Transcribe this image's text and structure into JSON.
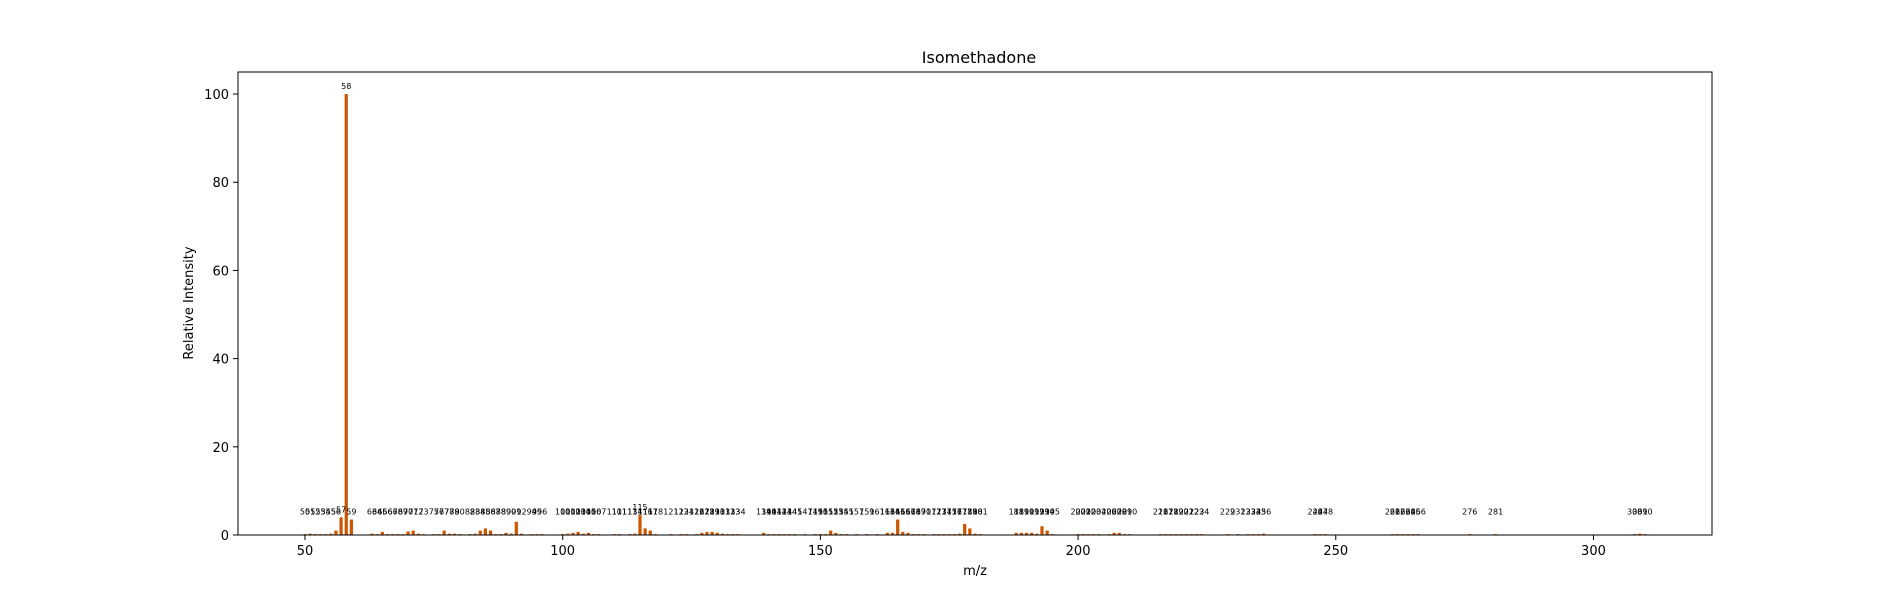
{
  "chart_data": {
    "type": "bar",
    "title": "Isomethadone",
    "xlabel": "m/z",
    "ylabel": "Relative Intensity",
    "xlim": [
      37,
      323
    ],
    "ylim": [
      0,
      105
    ],
    "xticks": [
      50,
      100,
      150,
      200,
      250,
      300
    ],
    "yticks": [
      0,
      20,
      40,
      60,
      80,
      100
    ],
    "grid": false,
    "bar_color": "#cc5500",
    "peaks": [
      {
        "mz": 50,
        "intensity": 0.2
      },
      {
        "mz": 51,
        "intensity": 0.3
      },
      {
        "mz": 52,
        "intensity": 0.2
      },
      {
        "mz": 53,
        "intensity": 0.2
      },
      {
        "mz": 54,
        "intensity": 0.2
      },
      {
        "mz": 55,
        "intensity": 0.3
      },
      {
        "mz": 56,
        "intensity": 1.0
      },
      {
        "mz": 57,
        "intensity": 4.0
      },
      {
        "mz": 58,
        "intensity": 100
      },
      {
        "mz": 59,
        "intensity": 3.5
      },
      {
        "mz": 63,
        "intensity": 0.3
      },
      {
        "mz": 64,
        "intensity": 0.2
      },
      {
        "mz": 65,
        "intensity": 0.7
      },
      {
        "mz": 66,
        "intensity": 0.2
      },
      {
        "mz": 67,
        "intensity": 0.2
      },
      {
        "mz": 68,
        "intensity": 0.2
      },
      {
        "mz": 69,
        "intensity": 0.2
      },
      {
        "mz": 70,
        "intensity": 0.8
      },
      {
        "mz": 71,
        "intensity": 1.0
      },
      {
        "mz": 72,
        "intensity": 0.3
      },
      {
        "mz": 73,
        "intensity": 0.2
      },
      {
        "mz": 75,
        "intensity": 0.2
      },
      {
        "mz": 76,
        "intensity": 0.2
      },
      {
        "mz": 77,
        "intensity": 1.0
      },
      {
        "mz": 78,
        "intensity": 0.3
      },
      {
        "mz": 79,
        "intensity": 0.3
      },
      {
        "mz": 80,
        "intensity": 0.2
      },
      {
        "mz": 82,
        "intensity": 0.2
      },
      {
        "mz": 83,
        "intensity": 0.3
      },
      {
        "mz": 84,
        "intensity": 1.0
      },
      {
        "mz": 85,
        "intensity": 1.5
      },
      {
        "mz": 86,
        "intensity": 1.0
      },
      {
        "mz": 87,
        "intensity": 0.2
      },
      {
        "mz": 88,
        "intensity": 0.2
      },
      {
        "mz": 89,
        "intensity": 0.5
      },
      {
        "mz": 90,
        "intensity": 0.3
      },
      {
        "mz": 91,
        "intensity": 3.0
      },
      {
        "mz": 92,
        "intensity": 0.3
      },
      {
        "mz": 94,
        "intensity": 0.2
      },
      {
        "mz": 95,
        "intensity": 0.2
      },
      {
        "mz": 96,
        "intensity": 0.2
      },
      {
        "mz": 100,
        "intensity": 0.2
      },
      {
        "mz": 101,
        "intensity": 0.3
      },
      {
        "mz": 102,
        "intensity": 0.5
      },
      {
        "mz": 103,
        "intensity": 0.7
      },
      {
        "mz": 104,
        "intensity": 0.3
      },
      {
        "mz": 105,
        "intensity": 0.5
      },
      {
        "mz": 106,
        "intensity": 0.2
      },
      {
        "mz": 107,
        "intensity": 0.2
      },
      {
        "mz": 110,
        "intensity": 0.2
      },
      {
        "mz": 111,
        "intensity": 0.2
      },
      {
        "mz": 113,
        "intensity": 0.2
      },
      {
        "mz": 114,
        "intensity": 0.3
      },
      {
        "mz": 115,
        "intensity": 4.5
      },
      {
        "mz": 116,
        "intensity": 1.5
      },
      {
        "mz": 117,
        "intensity": 1.0
      },
      {
        "mz": 118,
        "intensity": 0.2
      },
      {
        "mz": 121,
        "intensity": 0.2
      },
      {
        "mz": 123,
        "intensity": 0.2
      },
      {
        "mz": 124,
        "intensity": 0.2
      },
      {
        "mz": 126,
        "intensity": 0.2
      },
      {
        "mz": 127,
        "intensity": 0.5
      },
      {
        "mz": 128,
        "intensity": 0.7
      },
      {
        "mz": 129,
        "intensity": 0.7
      },
      {
        "mz": 130,
        "intensity": 0.5
      },
      {
        "mz": 131,
        "intensity": 0.3
      },
      {
        "mz": 132,
        "intensity": 0.2
      },
      {
        "mz": 133,
        "intensity": 0.2
      },
      {
        "mz": 134,
        "intensity": 0.2
      },
      {
        "mz": 139,
        "intensity": 0.5
      },
      {
        "mz": 140,
        "intensity": 0.2
      },
      {
        "mz": 141,
        "intensity": 0.2
      },
      {
        "mz": 142,
        "intensity": 0.2
      },
      {
        "mz": 143,
        "intensity": 0.2
      },
      {
        "mz": 144,
        "intensity": 0.2
      },
      {
        "mz": 145,
        "intensity": 0.2
      },
      {
        "mz": 147,
        "intensity": 0.2
      },
      {
        "mz": 149,
        "intensity": 0.2
      },
      {
        "mz": 150,
        "intensity": 0.2
      },
      {
        "mz": 151,
        "intensity": 0.2
      },
      {
        "mz": 152,
        "intensity": 1.0
      },
      {
        "mz": 153,
        "intensity": 0.5
      },
      {
        "mz": 154,
        "intensity": 0.2
      },
      {
        "mz": 155,
        "intensity": 0.2
      },
      {
        "mz": 157,
        "intensity": 0.2
      },
      {
        "mz": 159,
        "intensity": 0.2
      },
      {
        "mz": 161,
        "intensity": 0.2
      },
      {
        "mz": 163,
        "intensity": 0.5
      },
      {
        "mz": 164,
        "intensity": 0.5
      },
      {
        "mz": 165,
        "intensity": 3.5
      },
      {
        "mz": 166,
        "intensity": 0.7
      },
      {
        "mz": 167,
        "intensity": 0.5
      },
      {
        "mz": 168,
        "intensity": 0.2
      },
      {
        "mz": 169,
        "intensity": 0.2
      },
      {
        "mz": 170,
        "intensity": 0.2
      },
      {
        "mz": 172,
        "intensity": 0.2
      },
      {
        "mz": 173,
        "intensity": 0.2
      },
      {
        "mz": 174,
        "intensity": 0.2
      },
      {
        "mz": 175,
        "intensity": 0.2
      },
      {
        "mz": 176,
        "intensity": 0.2
      },
      {
        "mz": 177,
        "intensity": 0.3
      },
      {
        "mz": 178,
        "intensity": 2.5
      },
      {
        "mz": 179,
        "intensity": 1.5
      },
      {
        "mz": 180,
        "intensity": 0.3
      },
      {
        "mz": 181,
        "intensity": 0.2
      },
      {
        "mz": 188,
        "intensity": 0.5
      },
      {
        "mz": 189,
        "intensity": 0.5
      },
      {
        "mz": 190,
        "intensity": 0.5
      },
      {
        "mz": 191,
        "intensity": 0.5
      },
      {
        "mz": 192,
        "intensity": 0.3
      },
      {
        "mz": 193,
        "intensity": 2.0
      },
      {
        "mz": 194,
        "intensity": 1.0
      },
      {
        "mz": 195,
        "intensity": 0.2
      },
      {
        "mz": 200,
        "intensity": 0.2
      },
      {
        "mz": 201,
        "intensity": 0.2
      },
      {
        "mz": 202,
        "intensity": 0.2
      },
      {
        "mz": 203,
        "intensity": 0.2
      },
      {
        "mz": 204,
        "intensity": 0.2
      },
      {
        "mz": 206,
        "intensity": 0.2
      },
      {
        "mz": 207,
        "intensity": 0.5
      },
      {
        "mz": 208,
        "intensity": 0.5
      },
      {
        "mz": 209,
        "intensity": 0.2
      },
      {
        "mz": 210,
        "intensity": 0.2
      },
      {
        "mz": 216,
        "intensity": 0.2
      },
      {
        "mz": 217,
        "intensity": 0.2
      },
      {
        "mz": 218,
        "intensity": 0.2
      },
      {
        "mz": 219,
        "intensity": 0.2
      },
      {
        "mz": 220,
        "intensity": 0.2
      },
      {
        "mz": 221,
        "intensity": 0.2
      },
      {
        "mz": 222,
        "intensity": 0.2
      },
      {
        "mz": 223,
        "intensity": 0.2
      },
      {
        "mz": 224,
        "intensity": 0.2
      },
      {
        "mz": 229,
        "intensity": 0.2
      },
      {
        "mz": 231,
        "intensity": 0.2
      },
      {
        "mz": 233,
        "intensity": 0.2
      },
      {
        "mz": 234,
        "intensity": 0.2
      },
      {
        "mz": 235,
        "intensity": 0.2
      },
      {
        "mz": 236,
        "intensity": 0.3
      },
      {
        "mz": 246,
        "intensity": 0.2
      },
      {
        "mz": 247,
        "intensity": 0.2
      },
      {
        "mz": 248,
        "intensity": 0.2
      },
      {
        "mz": 261,
        "intensity": 0.2
      },
      {
        "mz": 262,
        "intensity": 0.2
      },
      {
        "mz": 263,
        "intensity": 0.2
      },
      {
        "mz": 264,
        "intensity": 0.2
      },
      {
        "mz": 265,
        "intensity": 0.2
      },
      {
        "mz": 266,
        "intensity": 0.2
      },
      {
        "mz": 276,
        "intensity": 0.2
      },
      {
        "mz": 281,
        "intensity": 0.2
      },
      {
        "mz": 308,
        "intensity": 0.2
      },
      {
        "mz": 309,
        "intensity": 0.3
      },
      {
        "mz": 310,
        "intensity": 0.2
      }
    ]
  }
}
